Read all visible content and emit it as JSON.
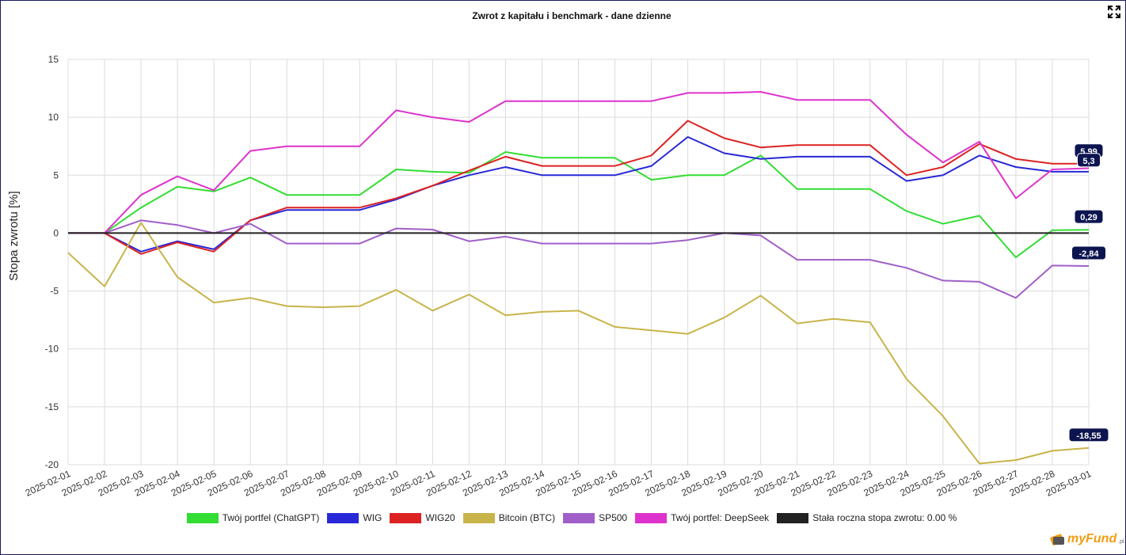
{
  "chart_data": {
    "type": "line",
    "title": "Zwrot z kapitału i benchmark - dane dzienne",
    "ylabel": "Stopa zwrotu [%]",
    "xlabel": "",
    "ylim": [
      -20,
      15
    ],
    "yticks": [
      -20,
      -15,
      -10,
      -5,
      0,
      5,
      10,
      15
    ],
    "ytick_labels": [
      "-20",
      "-15",
      "-10",
      "-5",
      "0",
      "5",
      "10",
      "15"
    ],
    "grid": true,
    "legend": "bottom",
    "categories": [
      "2025-02-01",
      "2025-02-02",
      "2025-02-03",
      "2025-02-04",
      "2025-02-05",
      "2025-02-06",
      "2025-02-07",
      "2025-02-08",
      "2025-02-09",
      "2025-02-10",
      "2025-02-11",
      "2025-02-12",
      "2025-02-13",
      "2025-02-14",
      "2025-02-15",
      "2025-02-16",
      "2025-02-17",
      "2025-02-18",
      "2025-02-19",
      "2025-02-20",
      "2025-02-21",
      "2025-02-22",
      "2025-02-23",
      "2025-02-24",
      "2025-02-25",
      "2025-02-26",
      "2025-02-27",
      "2025-02-28",
      "2025-03-01"
    ],
    "series": [
      {
        "name": "Twój portfel (ChatGPT)",
        "color": "#33dd33",
        "values": [
          0,
          0,
          2.2,
          4.0,
          3.6,
          4.8,
          3.3,
          3.3,
          3.3,
          5.5,
          5.3,
          5.2,
          7.0,
          6.5,
          6.5,
          6.5,
          4.6,
          5.0,
          5.0,
          6.7,
          3.8,
          3.8,
          3.8,
          1.9,
          0.8,
          1.5,
          -2.1,
          0.25,
          0.29
        ],
        "end_label": "0,29"
      },
      {
        "name": "WIG",
        "color": "#2828d8",
        "values": [
          0,
          0,
          -1.6,
          -0.7,
          -1.4,
          1.1,
          2.0,
          2.0,
          2.0,
          2.9,
          4.1,
          5.0,
          5.7,
          5.0,
          5.0,
          5.0,
          5.8,
          8.3,
          6.9,
          6.4,
          6.6,
          6.6,
          6.6,
          4.5,
          5.0,
          6.7,
          5.7,
          5.3,
          5.3
        ],
        "end_label": "5,3"
      },
      {
        "name": "WIG20",
        "color": "#dd2222",
        "values": [
          0,
          0,
          -1.8,
          -0.8,
          -1.6,
          1.1,
          2.2,
          2.2,
          2.2,
          3.0,
          4.1,
          5.4,
          6.6,
          5.8,
          5.8,
          5.8,
          6.7,
          9.7,
          8.2,
          7.4,
          7.6,
          7.6,
          7.6,
          5.0,
          5.7,
          7.7,
          6.4,
          6.0,
          5.99
        ],
        "end_label": "5,99"
      },
      {
        "name": "Bitcoin (BTC)",
        "color": "#c8b44a",
        "values": [
          -1.7,
          -4.6,
          0.9,
          -3.8,
          -6.0,
          -5.6,
          -6.3,
          -6.4,
          -6.3,
          -4.9,
          -6.7,
          -5.3,
          -7.1,
          -6.8,
          -6.7,
          -8.1,
          -8.4,
          -8.7,
          -7.3,
          -5.4,
          -7.8,
          -7.4,
          -7.7,
          -12.6,
          -15.8,
          -19.9,
          -19.6,
          -18.8,
          -18.55
        ],
        "end_label": "-18,55"
      },
      {
        "name": "SP500",
        "color": "#a05fc8",
        "values": [
          0,
          0,
          1.1,
          0.7,
          0.0,
          0.8,
          -0.9,
          -0.9,
          -0.9,
          0.4,
          0.3,
          -0.7,
          -0.3,
          -0.9,
          -0.9,
          -0.9,
          -0.9,
          -0.6,
          0.0,
          -0.2,
          -2.3,
          -2.3,
          -2.3,
          -3.0,
          -4.1,
          -4.2,
          -5.6,
          -2.8,
          -2.84
        ],
        "end_label": "-2,84"
      },
      {
        "name": "Twój portfel: DeepSeek",
        "color": "#dd33cc",
        "values": [
          0,
          0,
          3.3,
          4.9,
          3.7,
          7.1,
          7.5,
          7.5,
          7.5,
          10.6,
          10.0,
          9.6,
          11.4,
          11.4,
          11.4,
          11.4,
          11.4,
          12.1,
          12.1,
          12.2,
          11.5,
          11.5,
          11.5,
          8.5,
          6.1,
          7.9,
          3.0,
          5.5,
          5.6
        ],
        "end_label": null
      },
      {
        "name": "Stała roczna stopa zwrotu: 0.00 %",
        "color": "#222222",
        "values": [
          0,
          0,
          0,
          0,
          0,
          0,
          0,
          0,
          0,
          0,
          0,
          0,
          0,
          0,
          0,
          0,
          0,
          0,
          0,
          0,
          0,
          0,
          0,
          0,
          0,
          0,
          0,
          0,
          0
        ],
        "end_label": null
      }
    ]
  },
  "ui": {
    "expand_icon": "expand-icon",
    "logo_text": "myFund",
    "logo_sub": ".pl"
  }
}
